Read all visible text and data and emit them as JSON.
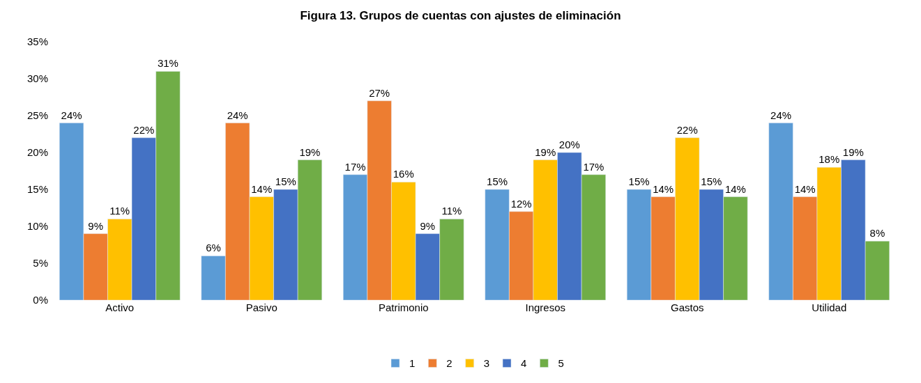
{
  "chart_data": {
    "type": "bar",
    "title": "Figura 13. Grupos de cuentas con ajustes de eliminación",
    "categories": [
      "Activo",
      "Pasivo",
      "Patrimonio",
      "Ingresos",
      "Gastos",
      "Utilidad"
    ],
    "series": [
      {
        "name": "1",
        "color": "#5b9bd5",
        "values": [
          24,
          6,
          17,
          15,
          15,
          24
        ],
        "value_labels": [
          "24%",
          "6%",
          "17%",
          "15%",
          "15%",
          "24%"
        ]
      },
      {
        "name": "2",
        "color": "#ed7d31",
        "values": [
          9,
          24,
          27,
          12,
          14,
          14
        ],
        "value_labels": [
          "9%",
          "24%",
          "27%",
          "12%",
          "14%",
          "14%"
        ]
      },
      {
        "name": "3",
        "color": "#ffc000",
        "values": [
          11,
          14,
          16,
          19,
          22,
          18
        ],
        "value_labels": [
          "11%",
          "14%",
          "16%",
          "19%",
          "22%",
          "18%"
        ]
      },
      {
        "name": "4",
        "color": "#4472c4",
        "values": [
          22,
          15,
          9,
          20,
          15,
          19
        ],
        "value_labels": [
          "22%",
          "15%",
          "9%",
          "20%",
          "15%",
          "19%"
        ]
      },
      {
        "name": "5",
        "color": "#70ad47",
        "values": [
          31,
          19,
          11,
          17,
          14,
          8
        ],
        "value_labels": [
          "31%",
          "19%",
          "11%",
          "17%",
          "14%",
          "8%"
        ]
      }
    ],
    "ylim": [
      0,
      35
    ],
    "yticks": [
      {
        "value": 0,
        "label": "0%"
      },
      {
        "value": 5,
        "label": "5%"
      },
      {
        "value": 10,
        "label": "10%"
      },
      {
        "value": 15,
        "label": "15%"
      },
      {
        "value": 20,
        "label": "20%"
      },
      {
        "value": 25,
        "label": "25%"
      },
      {
        "value": 30,
        "label": "30%"
      },
      {
        "value": 35,
        "label": "35%"
      }
    ],
    "grid": false,
    "legend": "bottom"
  }
}
